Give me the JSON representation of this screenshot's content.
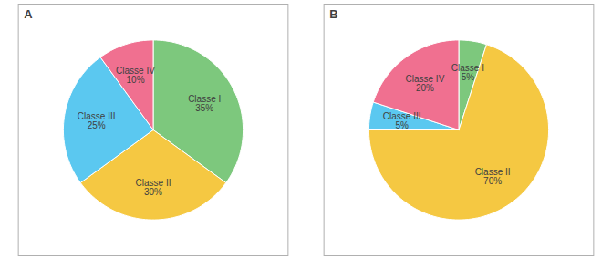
{
  "chart_data": [
    {
      "type": "pie",
      "title": "A",
      "categories": [
        "Classe I",
        "Classe II",
        "Classe III",
        "Classe IV"
      ],
      "values": [
        35,
        30,
        25,
        10
      ],
      "value_labels": [
        "35%",
        "30%",
        "25%",
        "10%"
      ],
      "colors": [
        "#7DC87D",
        "#F5C842",
        "#5BC8F0",
        "#F07090"
      ],
      "data_labels": true
    },
    {
      "type": "pie",
      "title": "B",
      "categories": [
        "Classe I",
        "Classe II",
        "Classe III",
        "Classe IV"
      ],
      "values": [
        5,
        70,
        5,
        20
      ],
      "value_labels": [
        "5%",
        "70%",
        "5%",
        "20%"
      ],
      "colors": [
        "#7DC87D",
        "#F5C842",
        "#5BC8F0",
        "#F07090"
      ],
      "data_labels": true
    }
  ]
}
